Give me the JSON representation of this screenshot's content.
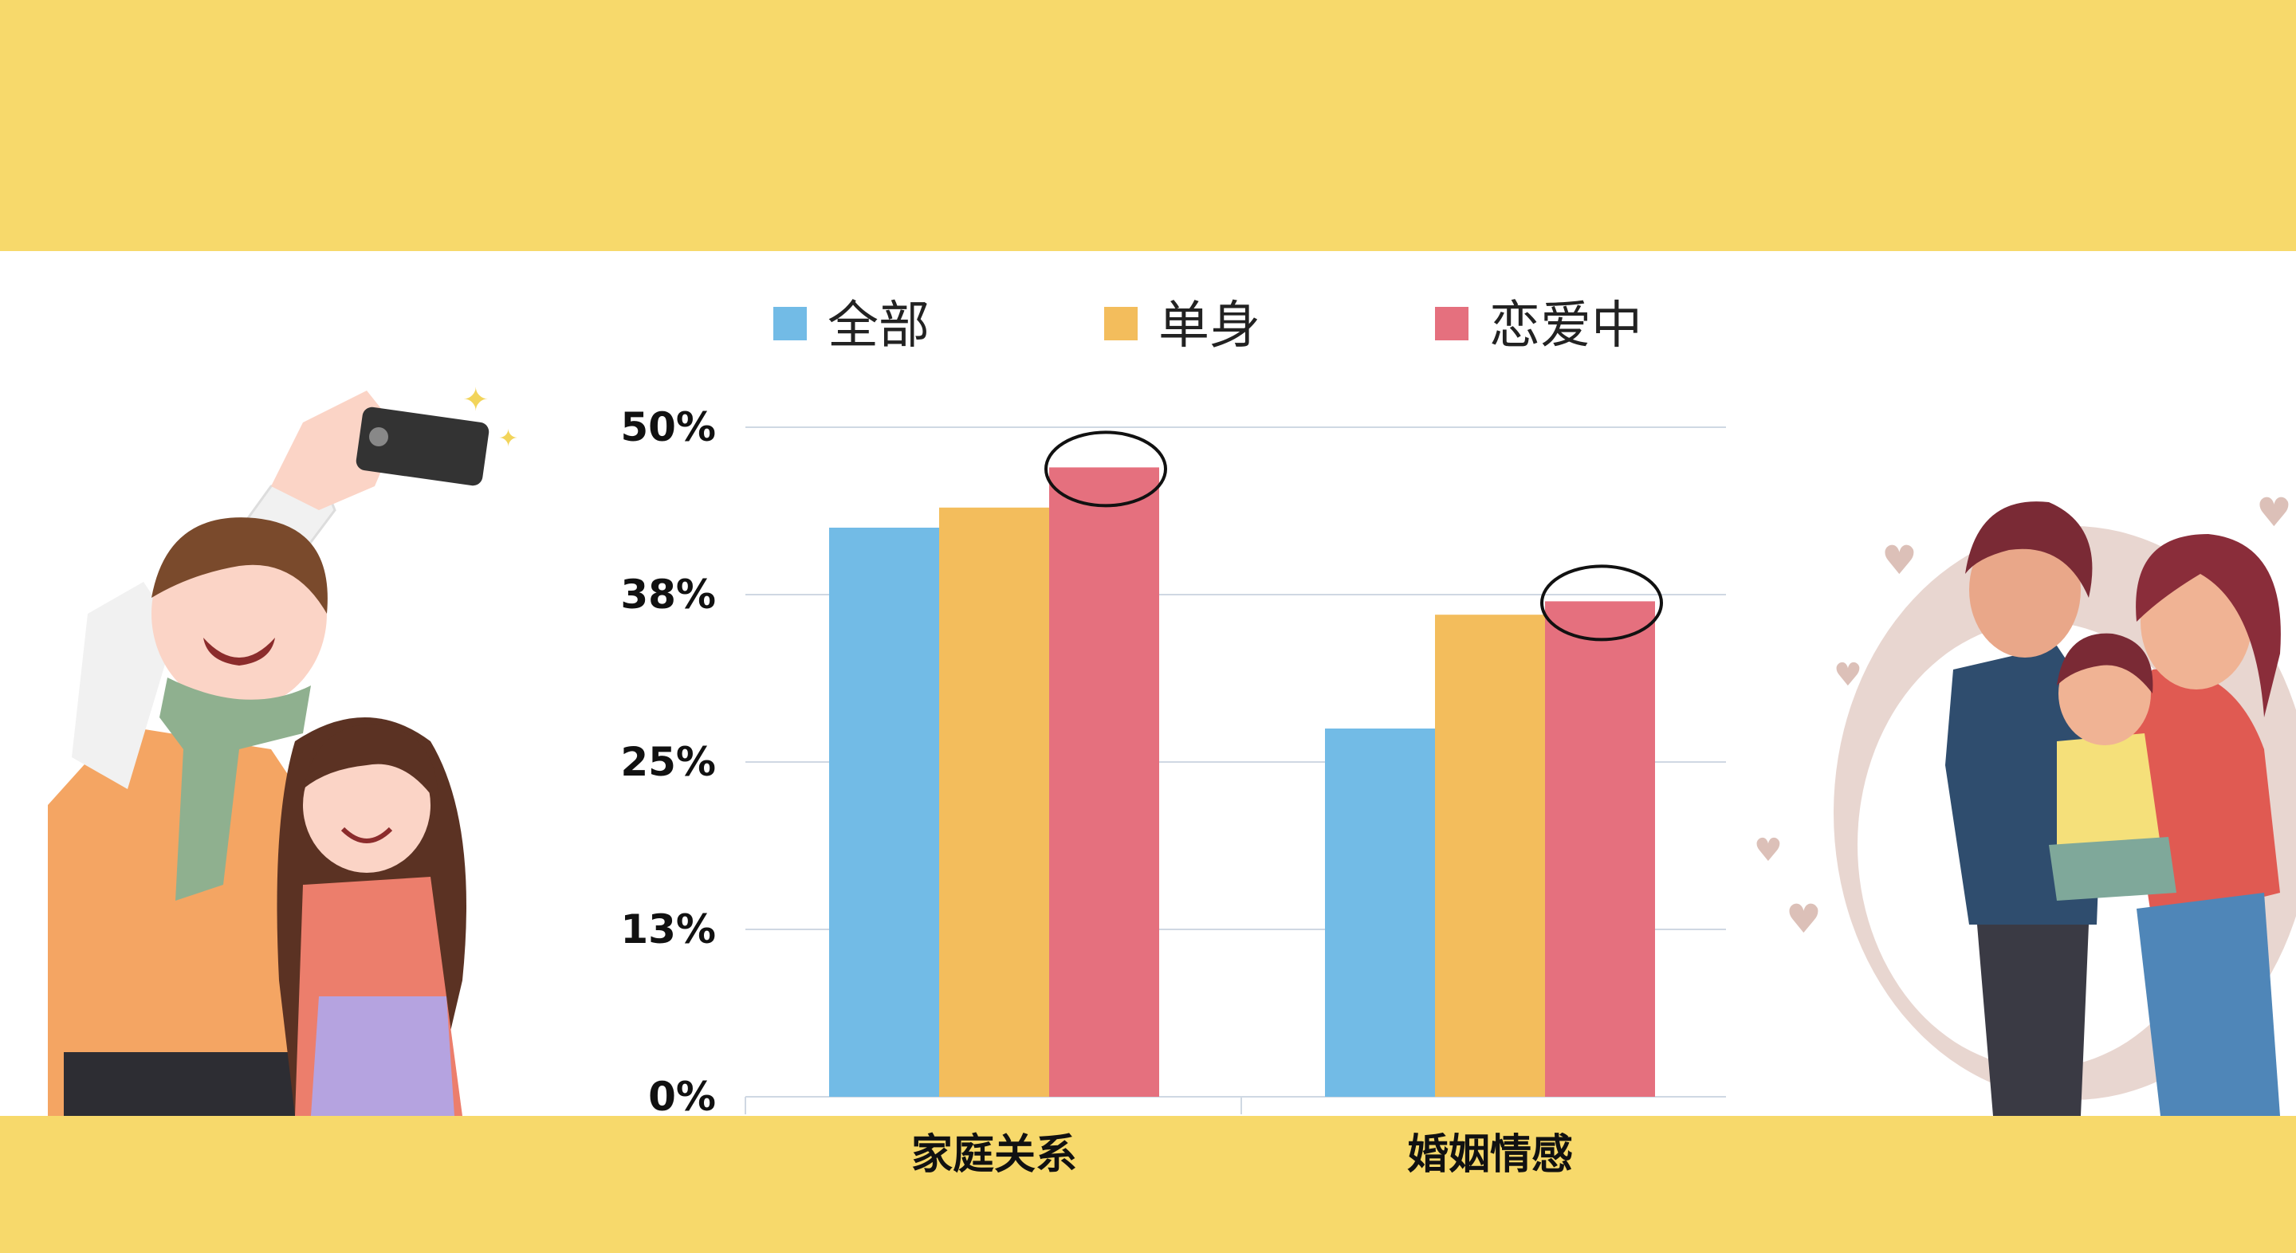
{
  "chart_data": {
    "type": "bar",
    "categories": [
      "家庭关系",
      "婚姻情感"
    ],
    "series": [
      {
        "name": "全部",
        "values": [
          42.5,
          27.5
        ],
        "color": "#72bbe6"
      },
      {
        "name": "单身",
        "values": [
          44.0,
          36.0
        ],
        "color": "#f3bd5c"
      },
      {
        "name": "恋爱中",
        "values": [
          47.0,
          37.0
        ],
        "color": "#e5707e"
      }
    ],
    "yticks": [
      "0%",
      "13%",
      "25%",
      "38%",
      "50%"
    ],
    "ylim": [
      0,
      50
    ],
    "grid": true,
    "legend_position": "top",
    "annotations": "circles highlight the 恋爱中 bar in each category"
  },
  "colors": {
    "band": "#f7d96b",
    "grid": "#cfd8e3"
  }
}
